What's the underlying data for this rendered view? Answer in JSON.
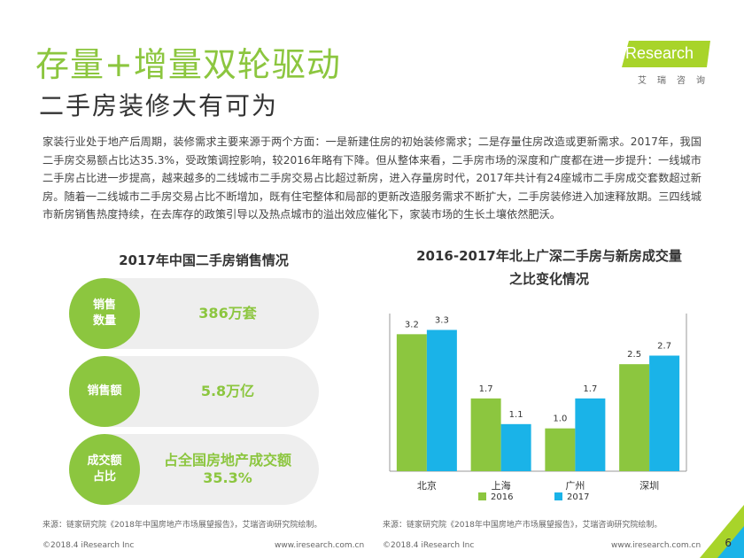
{
  "header": {
    "title": "存量+增量双轮驱动",
    "subtitle": "二手房装修大有可为",
    "logo_text": "iResearch",
    "logo_sub": "艾瑞咨询"
  },
  "intro": "家装行业处于地产后周期，装修需求主要来源于两个方面：一是新建住房的初始装修需求；二是存量住房改造或更新需求。2017年，我国二手房交易额占比达35.3%，受政策调控影响，较2016年略有下降。但从整体来看，二手房市场的深度和广度都在进一步提升：一线城市二手房占比进一步提高，越来越多的二线城市二手房交易占比超过新房，进入存量房时代，2017年共计有24座城市二手房成交套数超过新房。随着一二线城市二手房交易占比不断增加，既有住宅整体和局部的更新改造服务需求不断扩大，二手房装修进入加速释放期。三四线城市新房销售热度持续，在去库存的政策引导以及热点城市的溢出效应催化下，家装市场的生长土壤依然肥沃。",
  "left_panel": {
    "title": "2017年中国二手房销售情况",
    "stats": [
      {
        "label": "销售数量",
        "value": "386万套"
      },
      {
        "label": "销售额",
        "value": "5.8万亿"
      },
      {
        "label": "成交额占比",
        "value": "占全国房地产成交额35.3%"
      }
    ]
  },
  "right_panel": {
    "title": "2016-2017年北上广深二手房与新房成交量之比变化情况"
  },
  "chart_data": {
    "type": "bar",
    "title": "2016-2017年北上广深二手房与新房成交量之比变化情况",
    "categories": [
      "北京",
      "上海",
      "广州",
      "深圳"
    ],
    "series": [
      {
        "name": "2016",
        "values": [
          3.2,
          1.7,
          1.0,
          2.5
        ],
        "color": "#8cc63f"
      },
      {
        "name": "2017",
        "values": [
          3.3,
          1.1,
          1.7,
          2.7
        ],
        "color": "#1ab3e8"
      }
    ],
    "ylim": [
      0,
      3.6
    ],
    "grid": false,
    "legend": "bottom-center"
  },
  "footer": {
    "source_left": "来源：链家研究院《2018年中国房地产市场展望报告》，艾瑞咨询研究院绘制。",
    "source_right": "来源：链家研究院《2018年中国房地产市场展望报告》，艾瑞咨询研究院绘制。",
    "copyright_left": "©2018.4 iResearch Inc",
    "website_left": "www.iresearch.com.cn",
    "copyright_right": "©2018.4 iResearch Inc",
    "website_right": "www.iresearch.com.cn",
    "page": "6"
  }
}
